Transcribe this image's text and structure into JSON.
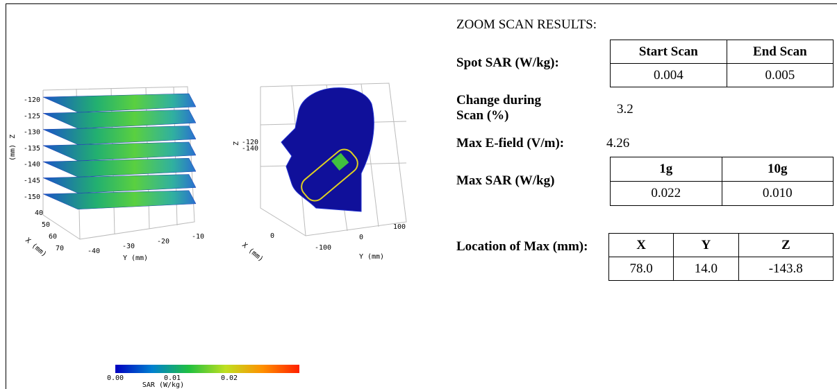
{
  "plots": {
    "layers": {
      "z_label": "Z",
      "z_unit": "(mm)",
      "z_ticks": [
        "-120",
        "-125",
        "-130",
        "-135",
        "-140",
        "-145",
        "-150"
      ],
      "x_label": "X (mm)",
      "x_ticks": [
        "40",
        "50",
        "60",
        "70"
      ],
      "y_label": "Y (mm)",
      "y_ticks": [
        "-40",
        "-30",
        "-20",
        "-10"
      ]
    },
    "head": {
      "z_label": "Z",
      "z_ticks": [
        "-120",
        "-140"
      ],
      "x_label": "X (mm)",
      "x_tick": "0",
      "y_label": "Y (mm)",
      "y_ticks": [
        "-100",
        "0",
        "100"
      ]
    },
    "colorbar": {
      "ticks": [
        "0.00",
        "0.01",
        "0.02"
      ],
      "label": "SAR (W/kg)"
    }
  },
  "results": {
    "title": "ZOOM SCAN RESULTS:",
    "spot_sar": {
      "label": "Spot SAR (W/kg):",
      "headers": [
        "Start Scan",
        "End Scan"
      ],
      "values": [
        "0.004",
        "0.005"
      ]
    },
    "change": {
      "label": "Change during Scan (%)",
      "value": "3.2"
    },
    "max_e_field": {
      "label": "Max E-field (V/m):",
      "value": "4.26"
    },
    "max_sar": {
      "label": "Max SAR (W/kg)",
      "headers": [
        "1g",
        "10g"
      ],
      "values": [
        "0.022",
        "0.010"
      ]
    },
    "location": {
      "label": "Location of Max (mm):",
      "headers": [
        "X",
        "Y",
        "Z"
      ],
      "values": [
        "78.0",
        "14.0",
        "-143.8"
      ]
    }
  }
}
